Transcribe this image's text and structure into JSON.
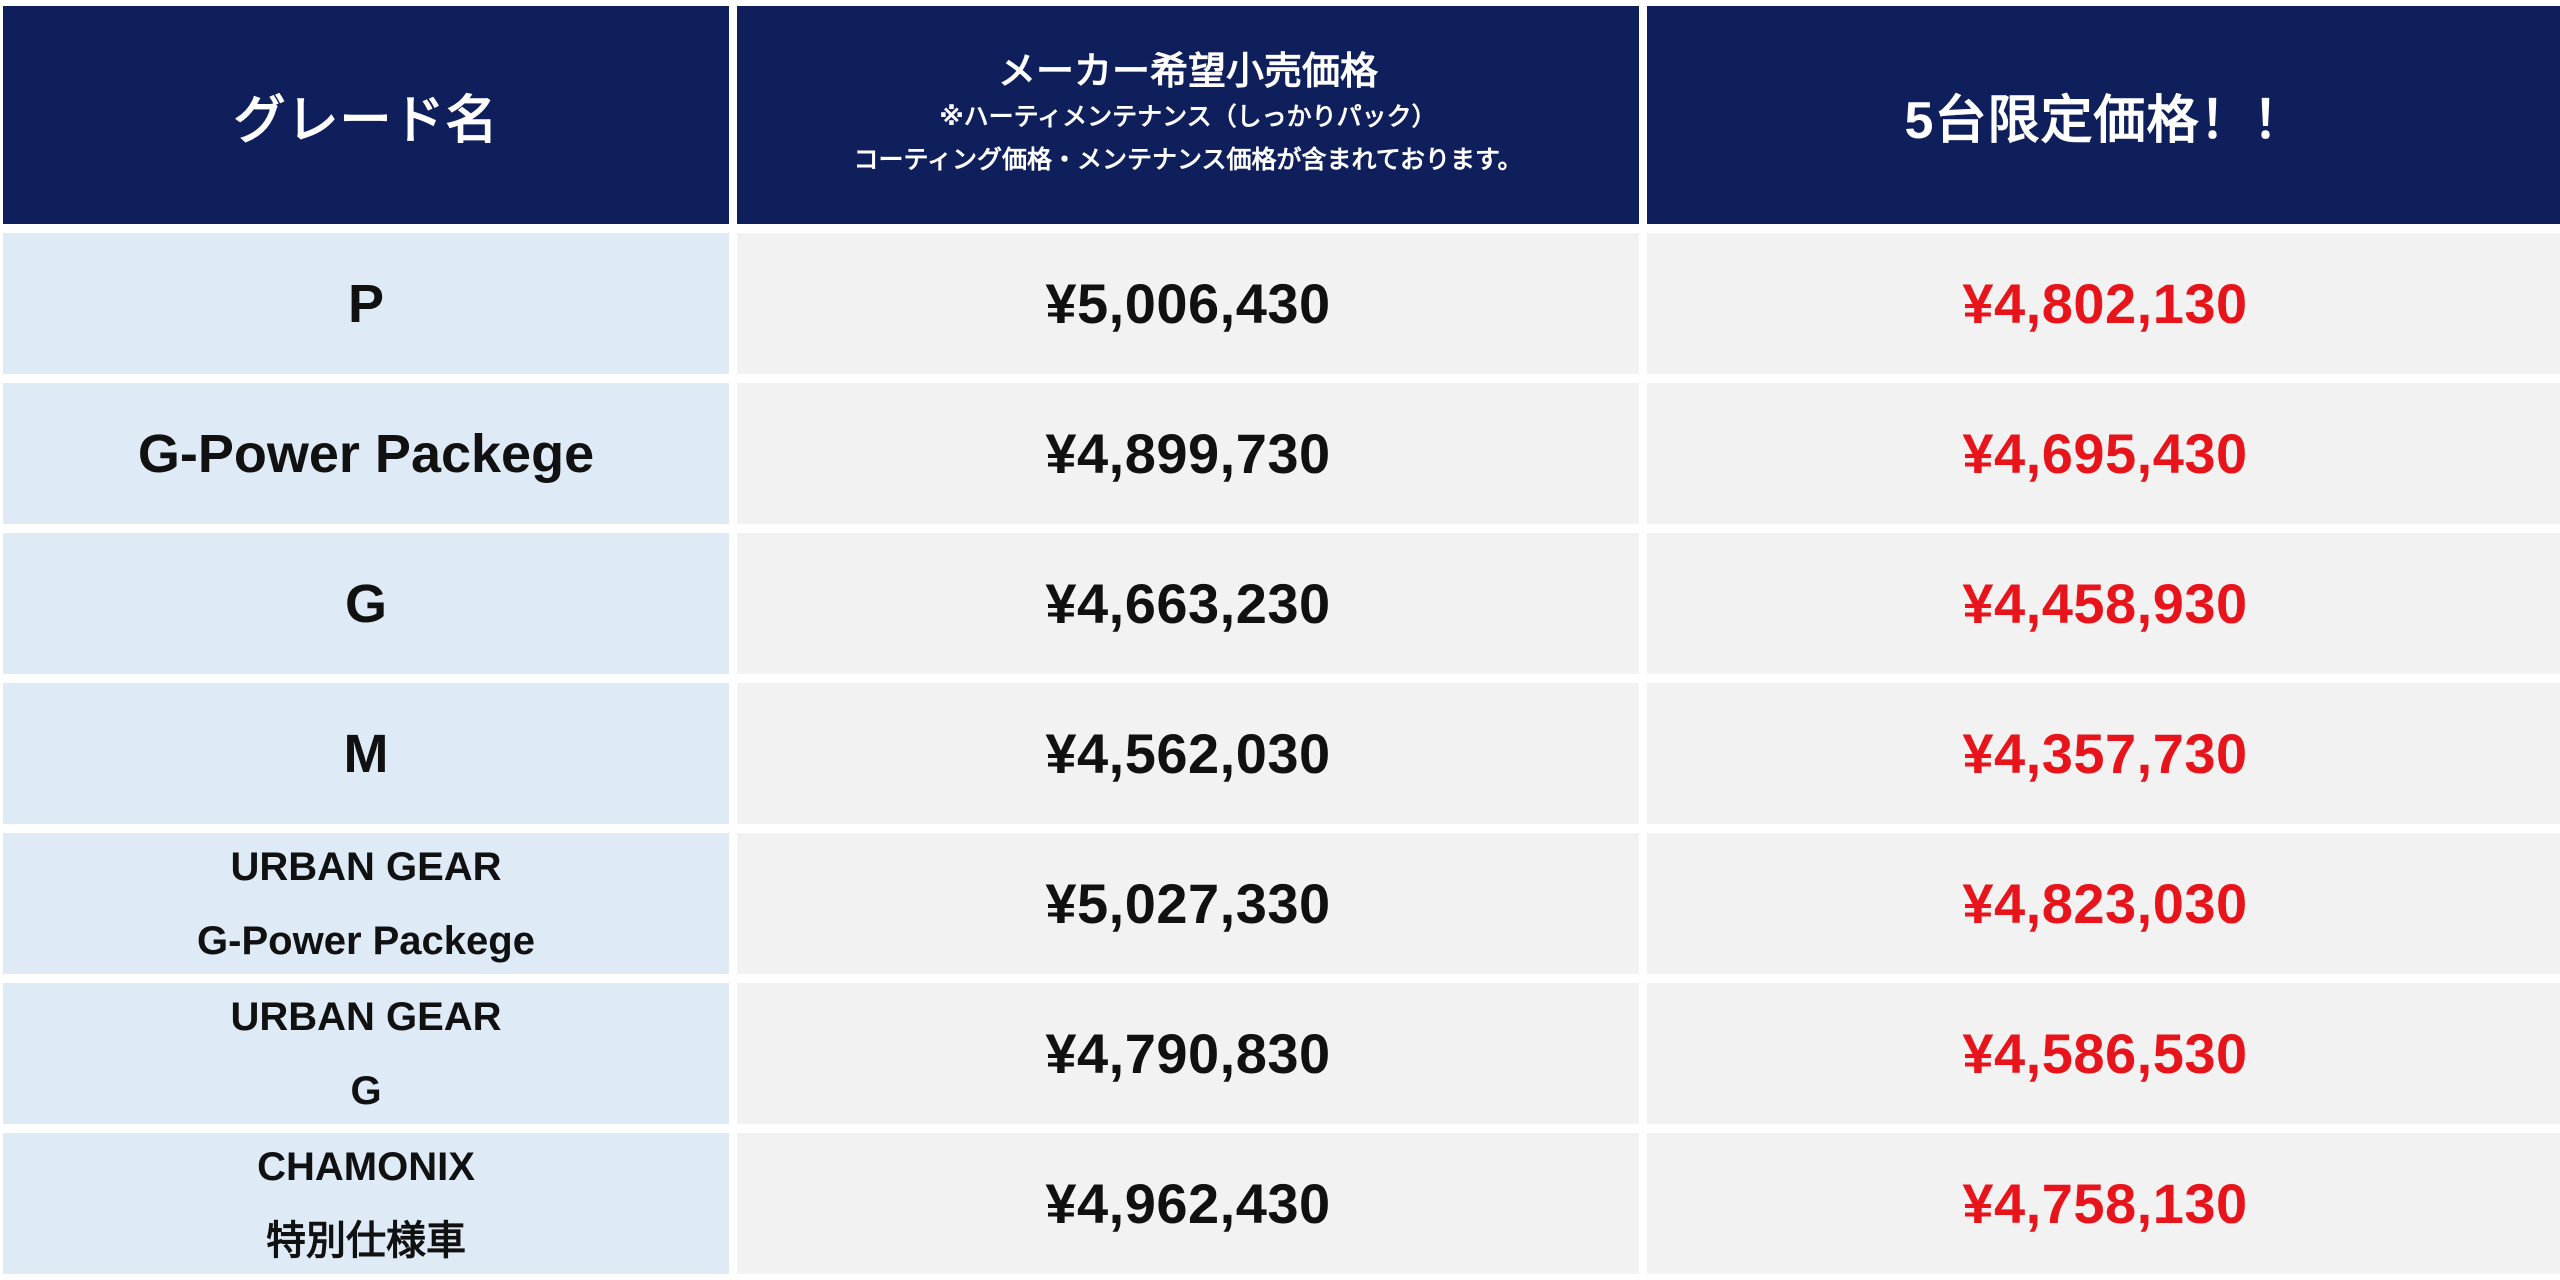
{
  "header": {
    "grade": "グレード名",
    "msrp_line1": "メーカー希望小売価格",
    "msrp_line2": "※ハーティメンテナンス（しっかりパック）",
    "msrp_line3": "コーティング価格・メンテナンス価格が含まれております。",
    "sale": "5台限定価格！！"
  },
  "rows": [
    {
      "grade_line1": "P",
      "grade_line2": "",
      "msrp": "¥5,006,430",
      "sale": "¥4,802,130"
    },
    {
      "grade_line1": "G-Power Packege",
      "grade_line2": "",
      "msrp": "¥4,899,730",
      "sale": "¥4,695,430"
    },
    {
      "grade_line1": "G",
      "grade_line2": "",
      "msrp": "¥4,663,230",
      "sale": "¥4,458,930"
    },
    {
      "grade_line1": "M",
      "grade_line2": "",
      "msrp": "¥4,562,030",
      "sale": "¥4,357,730"
    },
    {
      "grade_line1": "URBAN GEAR",
      "grade_line2": "G-Power Packege",
      "msrp": "¥5,027,330",
      "sale": "¥4,823,030"
    },
    {
      "grade_line1": "URBAN GEAR",
      "grade_line2": "G",
      "msrp": "¥4,790,830",
      "sale": "¥4,586,530"
    },
    {
      "grade_line1": "CHAMONIX",
      "grade_line2": "特別仕様車",
      "msrp": "¥4,962,430",
      "sale": "¥4,758,130"
    }
  ],
  "colors": {
    "header_bg": "#0f1f5c",
    "grade_bg": "#deeaf6",
    "price_bg": "#f2f2f2",
    "sale_text": "#e8141b"
  }
}
